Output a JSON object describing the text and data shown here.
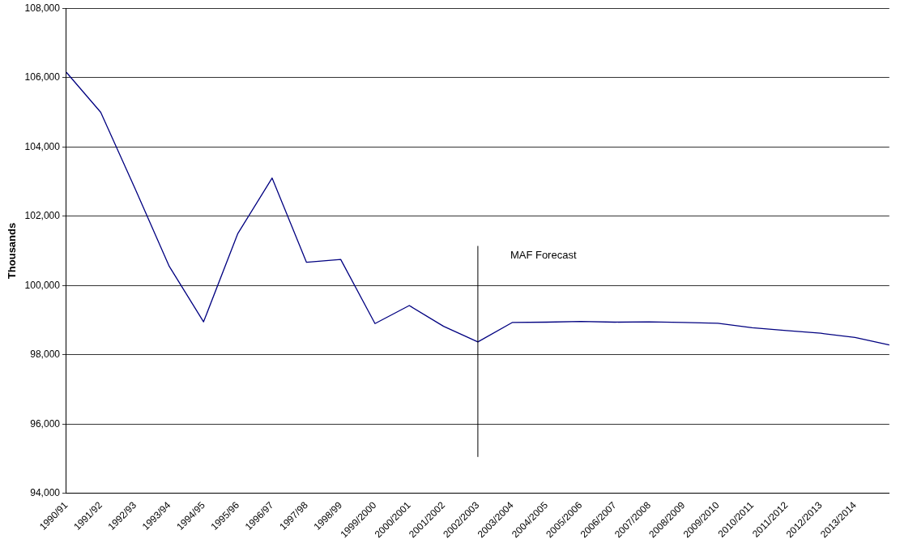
{
  "chart_data": {
    "type": "line",
    "ylabel": "Thousands",
    "categories": [
      "1990/91",
      "1991/92",
      "1992/93",
      "1993/94",
      "1994/95",
      "1995/96",
      "1996/97",
      "1997/98",
      "1998/99",
      "1999/2000",
      "2000/2001",
      "2001/2002",
      "2002/2003",
      "2003/2004",
      "2004/2005",
      "2005/2006",
      "2006/2007",
      "2007/2008",
      "2008/2009",
      "2009/2010",
      "2010/2011",
      "2011/2012",
      "2012/2013",
      "2013/2014",
      null
    ],
    "series": [
      {
        "color": "#000080",
        "values": [
          106150,
          105000,
          102800,
          100550,
          98950,
          101500,
          103100,
          100670,
          100750,
          98900,
          99420,
          98820,
          98370,
          98930,
          98940,
          98960,
          98940,
          98950,
          98930,
          98910,
          98780,
          98700,
          98620,
          98500,
          98280
        ]
      }
    ],
    "ylim": [
      94000,
      108000
    ],
    "yticks": [
      {
        "value": 94000,
        "label": "94,000"
      },
      {
        "value": 96000,
        "label": "96,000"
      },
      {
        "value": 98000,
        "label": "98,000"
      },
      {
        "value": 100000,
        "label": "100,000"
      },
      {
        "value": 102000,
        "label": "102,000"
      },
      {
        "value": 104000,
        "label": "104,000"
      },
      {
        "value": 106000,
        "label": "106,000"
      },
      {
        "value": 108000,
        "label": "108,000"
      }
    ],
    "grid": "y",
    "legend": false,
    "marker": "none",
    "line_style": "solid",
    "ref_lines": [
      {
        "axis": "x",
        "value": "2002/2003",
        "label": "MAF Forecast",
        "color": "#000000"
      }
    ]
  }
}
